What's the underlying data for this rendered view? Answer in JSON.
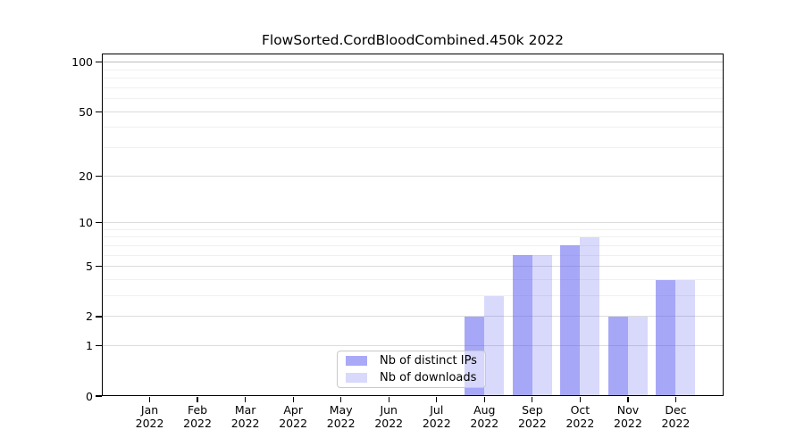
{
  "chart_data": {
    "type": "bar",
    "title": "FlowSorted.CordBloodCombined.450k 2022",
    "categories": [
      "Jan 2022",
      "Feb 2022",
      "Mar 2022",
      "Apr 2022",
      "May 2022",
      "Jun 2022",
      "Jul 2022",
      "Aug 2022",
      "Sep 2022",
      "Oct 2022",
      "Nov 2022",
      "Dec 2022"
    ],
    "series": [
      {
        "name": "Nb of distinct IPs",
        "values": [
          0,
          0,
          0,
          0,
          0,
          0,
          0,
          2,
          6,
          7,
          2,
          4
        ],
        "color": "#5050f0",
        "alpha": 0.5
      },
      {
        "name": "Nb of downloads",
        "values": [
          0,
          0,
          0,
          0,
          0,
          0,
          0,
          3,
          6,
          8,
          2,
          4
        ],
        "color": "#5050f0",
        "alpha": 0.22
      }
    ],
    "y_scale": "log1p",
    "ylim": [
      0,
      113
    ],
    "y_ticks": [
      0,
      1,
      2,
      5,
      10,
      20,
      50,
      100
    ],
    "y_minor_gridlines": [
      3,
      4,
      6,
      7,
      8,
      9,
      30,
      40,
      60,
      70,
      80,
      90
    ],
    "grid": "on",
    "legend_position": "inside-bottom-center",
    "xlabel": "",
    "ylabel": ""
  },
  "y_axis": {
    "tick_labels": [
      "0",
      "1",
      "2",
      "5",
      "10",
      "20",
      "50",
      "100"
    ]
  },
  "x_axis": {
    "months": [
      {
        "month": "Jan",
        "year": "2022"
      },
      {
        "month": "Feb",
        "year": "2022"
      },
      {
        "month": "Mar",
        "year": "2022"
      },
      {
        "month": "Apr",
        "year": "2022"
      },
      {
        "month": "May",
        "year": "2022"
      },
      {
        "month": "Jun",
        "year": "2022"
      },
      {
        "month": "Jul",
        "year": "2022"
      },
      {
        "month": "Aug",
        "year": "2022"
      },
      {
        "month": "Sep",
        "year": "2022"
      },
      {
        "month": "Oct",
        "year": "2022"
      },
      {
        "month": "Nov",
        "year": "2022"
      },
      {
        "month": "Dec",
        "year": "2022"
      }
    ]
  },
  "legend": {
    "items": [
      {
        "label": "Nb of distinct IPs",
        "swatch_color": "#a9a9f8"
      },
      {
        "label": "Nb of downloads",
        "swatch_color": "#d9d9fb"
      }
    ]
  }
}
